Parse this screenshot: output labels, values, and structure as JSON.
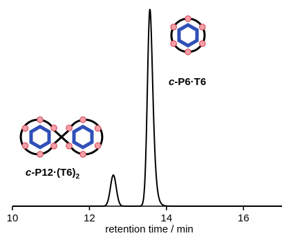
{
  "chart_data": {
    "type": "line",
    "xlabel": "retention time / min",
    "ylabel": "",
    "xlim": [
      10,
      17
    ],
    "x_ticks": [
      "10",
      "12",
      "14",
      "16"
    ],
    "show_y_axis": false,
    "grid": false,
    "series": [
      {
        "peaks": [
          {
            "x": 12.62,
            "relative_height": 0.158,
            "sigma": 0.075
          },
          {
            "x": 13.57,
            "relative_height": 1.0,
            "sigma": 0.065,
            "tail": 0.12
          }
        ]
      }
    ],
    "annotations": [
      {
        "prefix": "c",
        "text": "-P6·T6",
        "near_x": 13.57
      },
      {
        "prefix": "c",
        "text": "-P12·(T6)",
        "subscript": "2",
        "near_x": 12.62
      }
    ]
  }
}
